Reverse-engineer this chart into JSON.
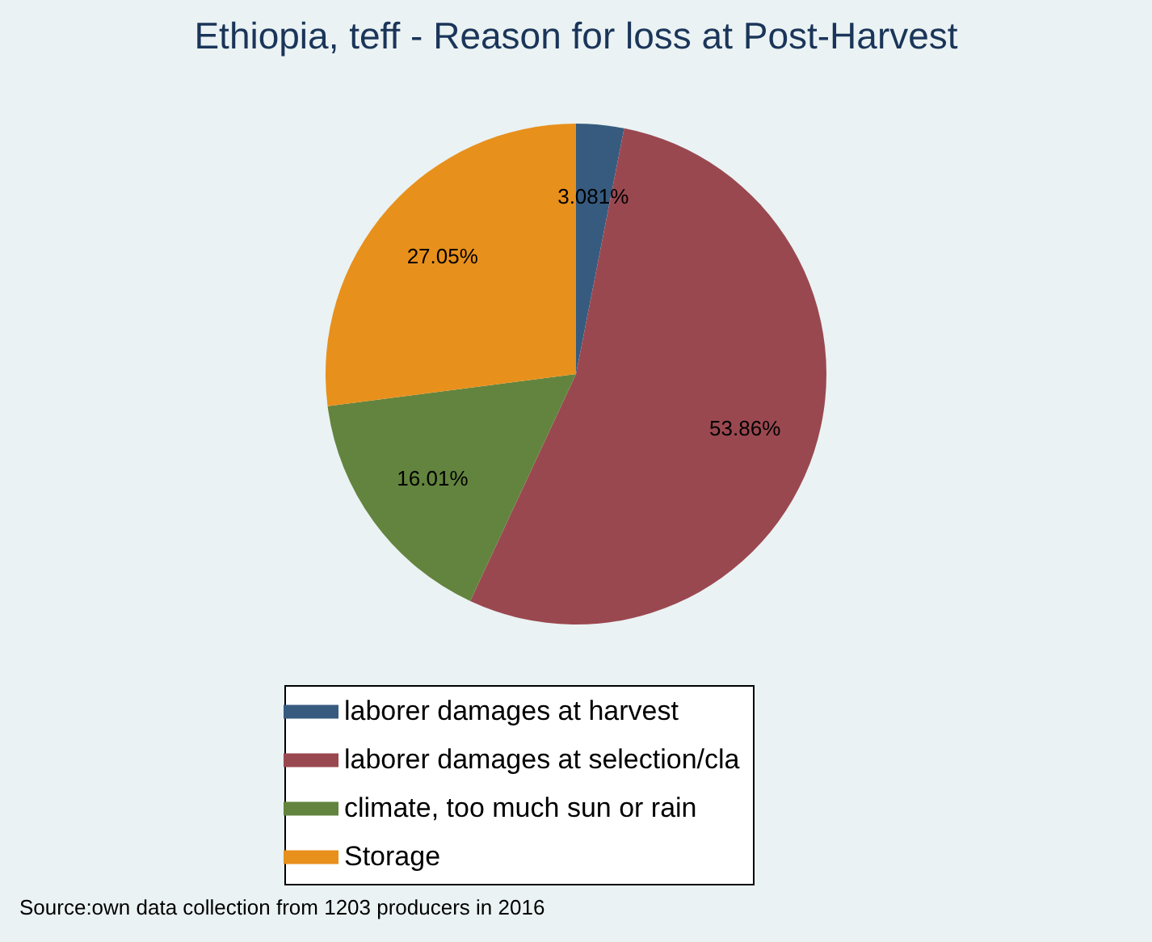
{
  "chart_data": {
    "type": "pie",
    "title": "Ethiopia, teff - Reason for loss at Post-Harvest",
    "categories": [
      "laborer damages at harvest",
      "laborer damages at selection/cla",
      "climate, too much sun or rain",
      "Storage"
    ],
    "values": [
      3.081,
      53.86,
      16.01,
      27.05
    ],
    "value_labels": [
      "3.081%",
      "53.86%",
      "16.01%",
      "27.05%"
    ],
    "colors": [
      "#365b7f",
      "#9a4850",
      "#63843e",
      "#e8901c"
    ],
    "legend": "bottom",
    "annotations": [
      "Source:own data collection from 1203 producers in 2016"
    ]
  }
}
